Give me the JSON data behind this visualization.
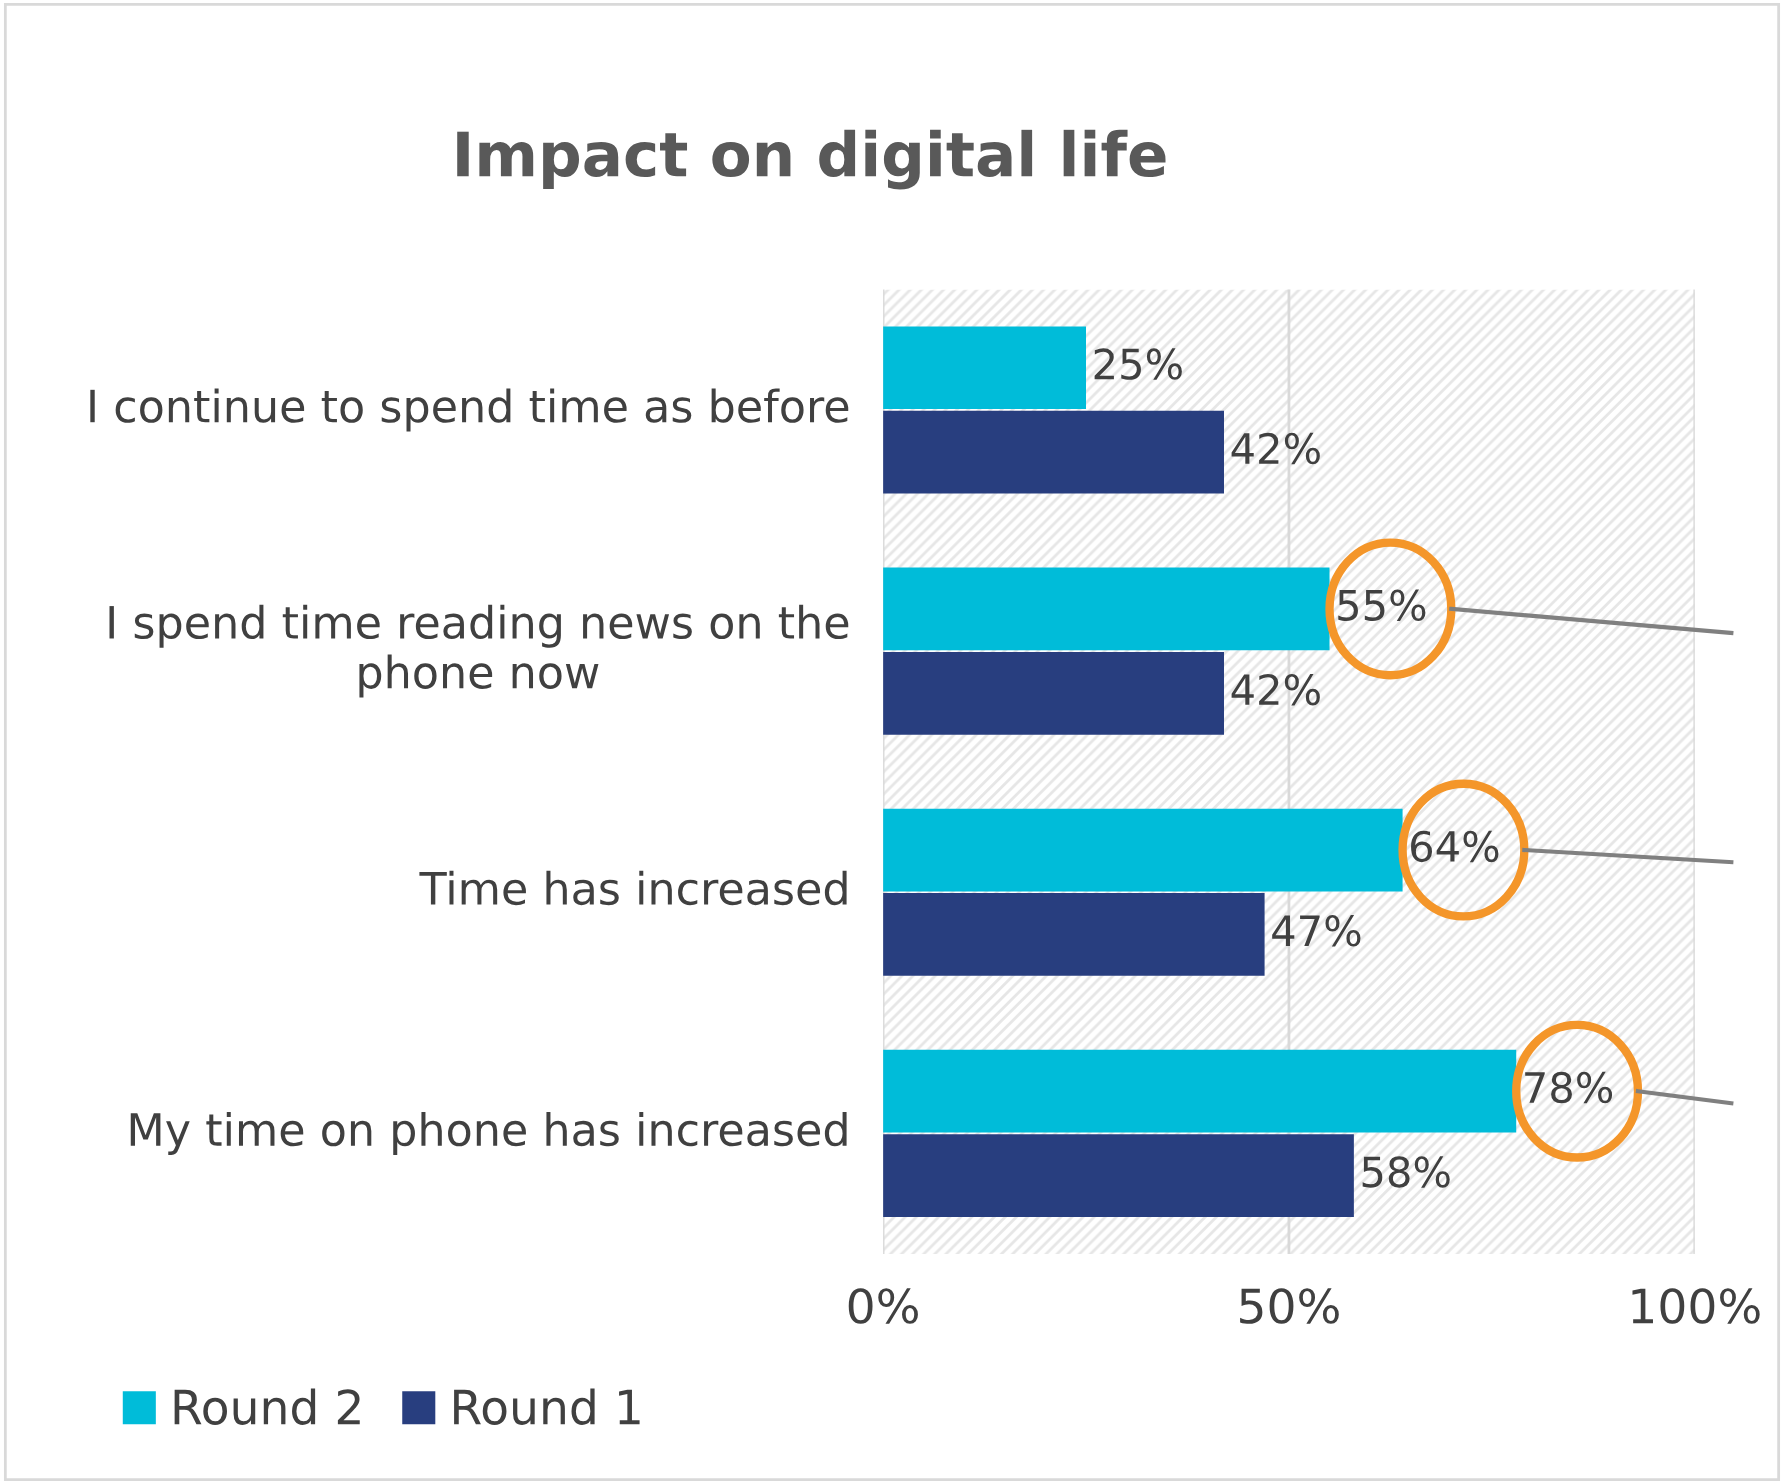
{
  "chart_data": {
    "type": "bar",
    "orientation": "horizontal",
    "title": "Impact on digital life",
    "categories": [
      "I continue to spend time as before",
      "I spend time reading news on the phone now",
      "Time has increased",
      "My time on phone has increased"
    ],
    "series": [
      {
        "name": "Round 2",
        "color": "#00bcd9",
        "values": [
          25,
          55,
          64,
          78
        ],
        "value_labels": [
          "25%",
          "55%",
          "64%",
          "78%"
        ]
      },
      {
        "name": "Round 1",
        "color": "#283e7f",
        "values": [
          42,
          42,
          47,
          58
        ],
        "value_labels": [
          "42%",
          "42%",
          "47%",
          "58%"
        ]
      }
    ],
    "xlim": [
      0,
      100
    ],
    "xticks": [
      {
        "value": 0,
        "label": "0%"
      },
      {
        "value": 50,
        "label": "50%"
      },
      {
        "value": 100,
        "label": "100%"
      }
    ],
    "grid": "x",
    "legend": "bottom left"
  }
}
